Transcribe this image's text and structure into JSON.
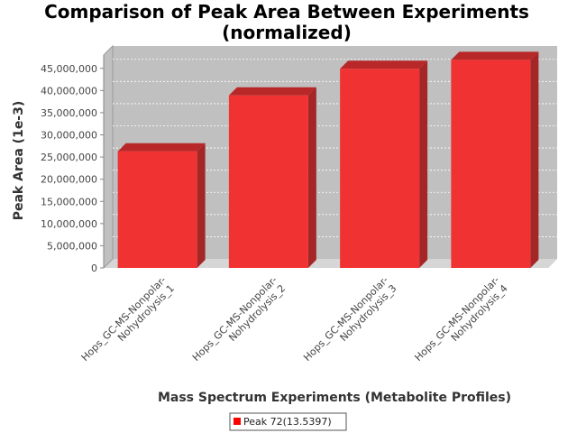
{
  "chart_data": {
    "type": "bar",
    "title": "Comparison of Peak Area Between Experiments",
    "subtitle": "(normalized)",
    "xlabel": "Mass Spectrum Experiments (Metabolite Profiles)",
    "ylabel": "Peak Area (1e-3)",
    "categories": [
      [
        "Hops_GC-MS-Nonpolar-",
        "Nohydrolysis_1"
      ],
      [
        "Hops_GC-MS-Nonpolar-",
        "Nohydrolysis_2"
      ],
      [
        "Hops_GC-MS-Nonpolar-",
        "Nohydrolysis_3"
      ],
      [
        "Hops_GC-MS-Nonpolar-",
        "Nohydrolysis_4"
      ]
    ],
    "series": [
      {
        "name": "Peak 72(13.5397)",
        "values": [
          26300000,
          38900000,
          44900000,
          46900000
        ]
      }
    ],
    "ylim": [
      0,
      48000000
    ],
    "yticks": [
      0,
      5000000,
      10000000,
      15000000,
      20000000,
      25000000,
      30000000,
      35000000,
      40000000,
      45000000
    ],
    "ytick_labels": [
      "0",
      "5,000,000",
      "10,000,000",
      "15,000,000",
      "20,000,000",
      "25,000,000",
      "30,000,000",
      "35,000,000",
      "40,000,000",
      "45,000,000"
    ],
    "grid": true,
    "legend_position": "bottom",
    "colors": {
      "bar_front": "#f03232",
      "bar_top": "#b82828",
      "bar_side": "#a52626",
      "plot_back": "#c0c0c0",
      "plot_floor": "#d6d6d6",
      "legend_swatch": "#ff0000"
    }
  }
}
